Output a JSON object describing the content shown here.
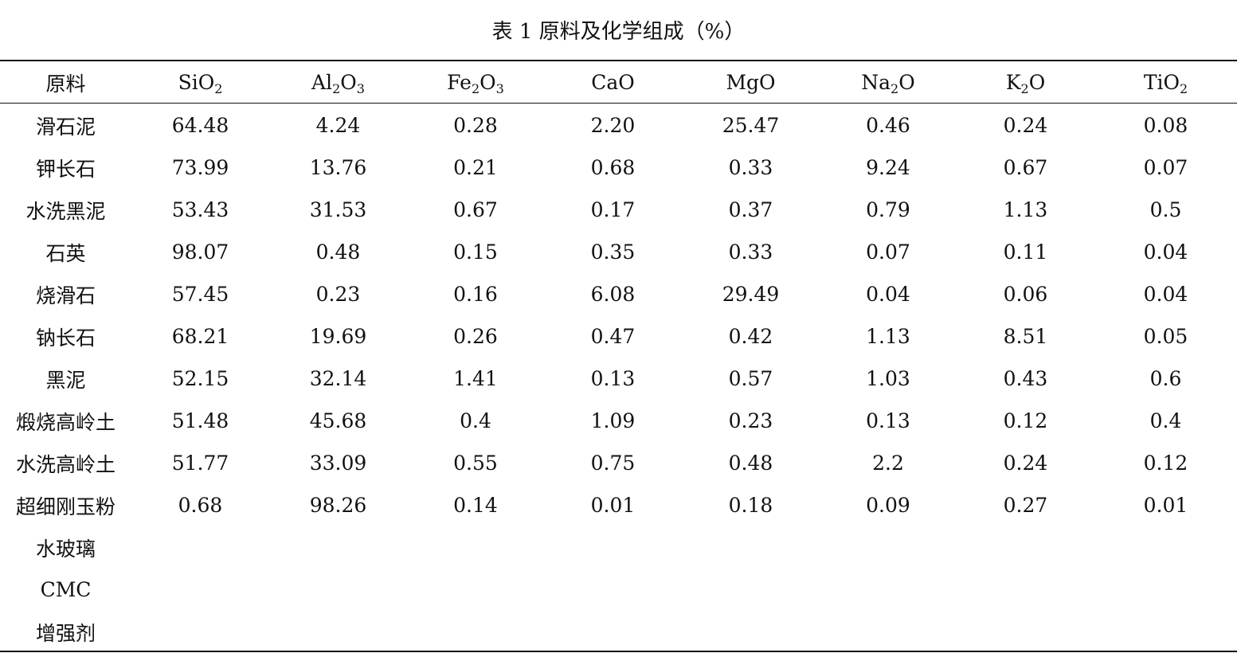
{
  "title": "表 1 原料及化学组成（%）",
  "columns": [
    {
      "base": "原料",
      "parts": [
        {
          "t": "原料",
          "sub": false
        }
      ]
    },
    {
      "base": "SiO2",
      "parts": [
        {
          "t": "SiO",
          "sub": false
        },
        {
          "t": "2",
          "sub": true
        }
      ]
    },
    {
      "base": "Al2O3",
      "parts": [
        {
          "t": "Al",
          "sub": false
        },
        {
          "t": "2",
          "sub": true
        },
        {
          "t": "O",
          "sub": false
        },
        {
          "t": "3",
          "sub": true
        }
      ]
    },
    {
      "base": "Fe2O3",
      "parts": [
        {
          "t": "Fe",
          "sub": false
        },
        {
          "t": "2",
          "sub": true
        },
        {
          "t": "O",
          "sub": false
        },
        {
          "t": "3",
          "sub": true
        }
      ]
    },
    {
      "base": "CaO",
      "parts": [
        {
          "t": "CaO",
          "sub": false
        }
      ]
    },
    {
      "base": "MgO",
      "parts": [
        {
          "t": "MgO",
          "sub": false
        }
      ]
    },
    {
      "base": "Na2O",
      "parts": [
        {
          "t": "Na",
          "sub": false
        },
        {
          "t": "2",
          "sub": true
        },
        {
          "t": "O",
          "sub": false
        }
      ]
    },
    {
      "base": "K2O",
      "parts": [
        {
          "t": "K",
          "sub": false
        },
        {
          "t": "2",
          "sub": true
        },
        {
          "t": "O",
          "sub": false
        }
      ]
    },
    {
      "base": "TiO2",
      "parts": [
        {
          "t": "TiO",
          "sub": false
        },
        {
          "t": "2",
          "sub": true
        }
      ]
    }
  ],
  "rows": [
    {
      "name": "滑石泥",
      "values": [
        "64.48",
        "4.24",
        "0.28",
        "2.20",
        "25.47",
        "0.46",
        "0.24",
        "0.08"
      ]
    },
    {
      "name": "钾长石",
      "values": [
        "73.99",
        "13.76",
        "0.21",
        "0.68",
        "0.33",
        "9.24",
        "0.67",
        "0.07"
      ]
    },
    {
      "name": "水洗黑泥",
      "values": [
        "53.43",
        "31.53",
        "0.67",
        "0.17",
        "0.37",
        "0.79",
        "1.13",
        "0.5"
      ]
    },
    {
      "name": "石英",
      "values": [
        "98.07",
        "0.48",
        "0.15",
        "0.35",
        "0.33",
        "0.07",
        "0.11",
        "0.04"
      ]
    },
    {
      "name": "烧滑石",
      "values": [
        "57.45",
        "0.23",
        "0.16",
        "6.08",
        "29.49",
        "0.04",
        "0.06",
        "0.04"
      ]
    },
    {
      "name": "钠长石",
      "values": [
        "68.21",
        "19.69",
        "0.26",
        "0.47",
        "0.42",
        "1.13",
        "8.51",
        "0.05"
      ]
    },
    {
      "name": "黑泥",
      "values": [
        "52.15",
        "32.14",
        "1.41",
        "0.13",
        "0.57",
        "1.03",
        "0.43",
        "0.6"
      ]
    },
    {
      "name": "煅烧高岭土",
      "values": [
        "51.48",
        "45.68",
        "0.4",
        "1.09",
        "0.23",
        "0.13",
        "0.12",
        "0.4"
      ]
    },
    {
      "name": "水洗高岭土",
      "values": [
        "51.77",
        "33.09",
        "0.55",
        "0.75",
        "0.48",
        "2.2",
        "0.24",
        "0.12"
      ]
    },
    {
      "name": "超细刚玉粉",
      "values": [
        "0.68",
        "98.26",
        "0.14",
        "0.01",
        "0.18",
        "0.09",
        "0.27",
        "0.01"
      ]
    },
    {
      "name": "水玻璃",
      "values": [
        "",
        "",
        "",
        "",
        "",
        "",
        "",
        ""
      ]
    },
    {
      "name": "CMC",
      "values": [
        "",
        "",
        "",
        "",
        "",
        "",
        "",
        ""
      ]
    },
    {
      "name": "增强剂",
      "values": [
        "",
        "",
        "",
        "",
        "",
        "",
        "",
        ""
      ]
    }
  ]
}
